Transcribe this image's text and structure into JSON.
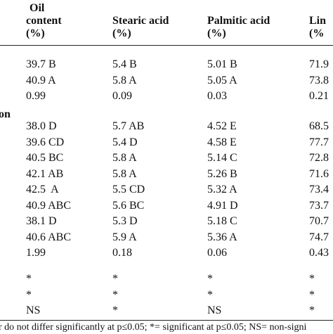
{
  "header": {
    "columns": [
      [
        "Oil",
        "content",
        "(%)"
      ],
      [
        "Stearic acid",
        "(%)"
      ],
      [
        "Palmitic acid",
        "(%)"
      ],
      [
        "Lin",
        "(%"
      ]
    ]
  },
  "table": {
    "group1": [
      [
        "39.7 B",
        "5.4 B",
        "5.01 B",
        "71.9"
      ],
      [
        "40.9 A",
        "5.8 A",
        "5.05 A",
        "73.8"
      ],
      [
        "0.99",
        "0.09",
        "0.03",
        "0.21"
      ]
    ],
    "section_label": "on",
    "group2": [
      [
        "38.0 D",
        "5.7 AB",
        "4.52 E",
        "68.5"
      ],
      [
        "39.6 CD",
        "5.4 D",
        "4.58 E",
        "77.7"
      ],
      [
        "40.5 BC",
        "5.8 A",
        "5.14 C",
        "72.8"
      ],
      [
        "42.1 AB",
        "5.8 A",
        "5.26 B",
        "71.6"
      ],
      [
        "42.5  A",
        "5.5 CD",
        "5.32 A",
        "73.4"
      ],
      [
        "40.9 ABC",
        "5.6 BC",
        "4.91 D",
        "73.7"
      ],
      [
        "38.1 D",
        "5.3 D",
        "5.18 C",
        "70.7"
      ],
      [
        "40.6 ABC",
        "5.9 A",
        "5.36 A",
        "74.7"
      ],
      [
        "1.99",
        "0.18",
        "0.06",
        "0.43"
      ]
    ],
    "group3": [
      [
        "*",
        "*",
        "*",
        "*"
      ],
      [
        "*",
        "*",
        "*",
        "*"
      ],
      [
        "NS",
        "*",
        "NS",
        "*"
      ]
    ]
  },
  "footnote": "r do not differ significantly at p≤0.05; *= significant at p≤0.05; NS= non-signi"
}
